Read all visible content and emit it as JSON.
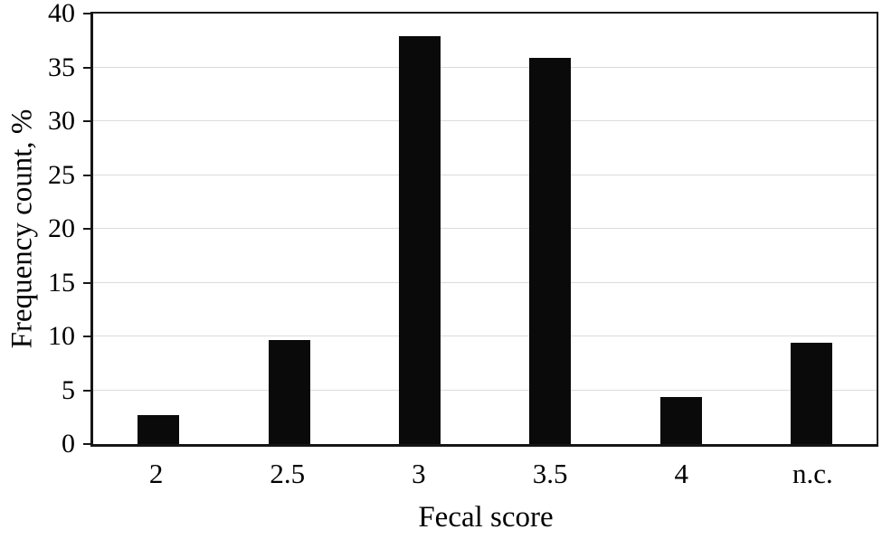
{
  "chart_data": {
    "type": "bar",
    "categories": [
      "2",
      "2.5",
      "3",
      "3.5",
      "4",
      "n.c."
    ],
    "values": [
      2.7,
      9.7,
      37.9,
      35.9,
      4.4,
      9.4
    ],
    "title": "",
    "xlabel": "Fecal score",
    "ylabel": "Frequency count, %",
    "ylim": [
      0,
      40
    ],
    "yticks": [
      0,
      5,
      10,
      15,
      20,
      25,
      30,
      35,
      40
    ],
    "grid": "horizontal",
    "legend": "none",
    "bar_color": "#0a0a0a",
    "gridline_color": "#dcdcdc",
    "axis_color": "#161616"
  }
}
